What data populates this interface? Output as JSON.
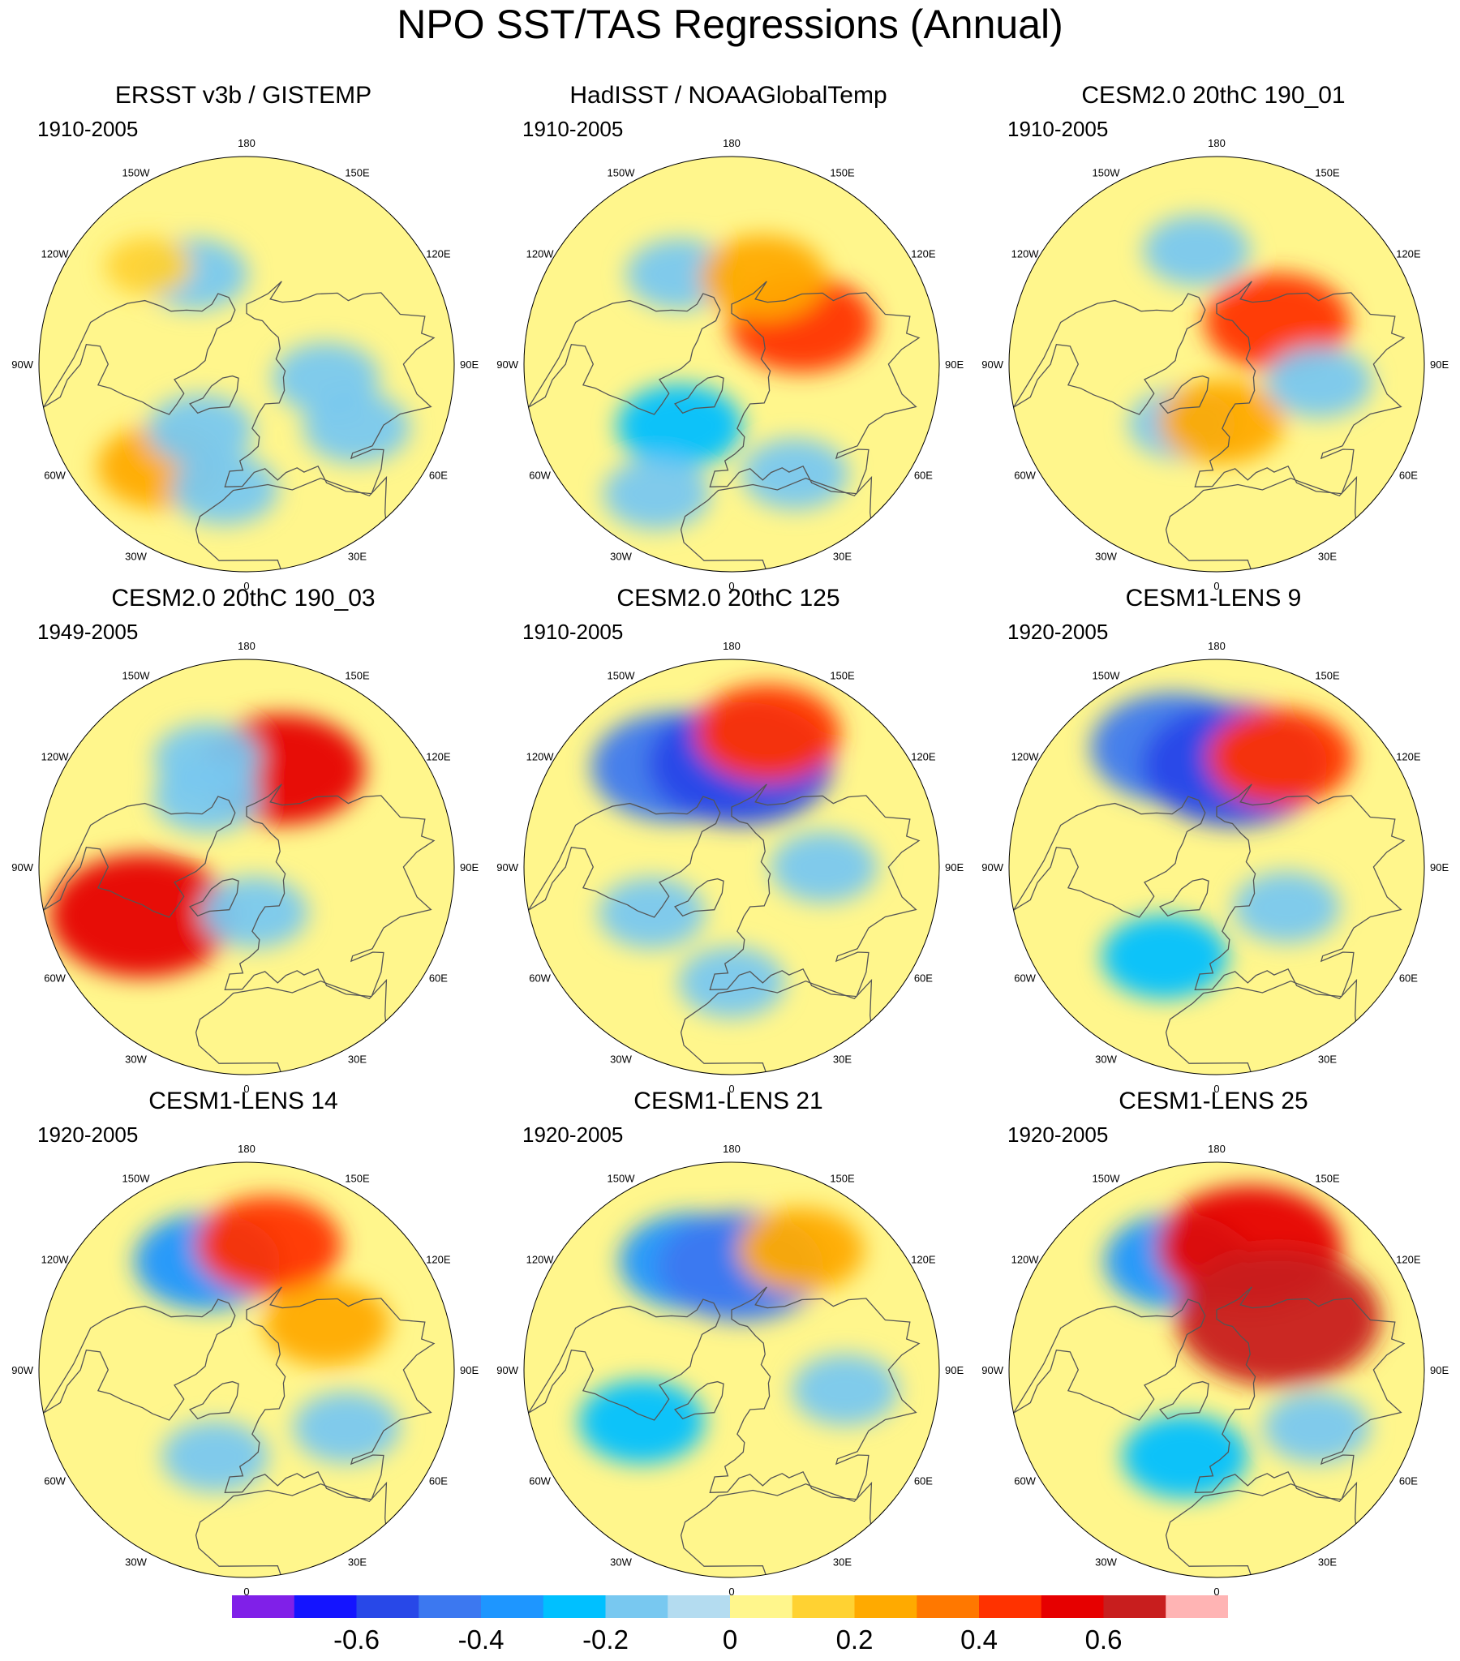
{
  "title": "NPO SST/TAS Regressions (Annual)",
  "longitude_labels": [
    "180",
    "150E",
    "120E",
    "90E",
    "60E",
    "30E",
    "0",
    "30W",
    "60W",
    "90W",
    "120W",
    "150W"
  ],
  "panels": [
    {
      "title": "ERSST v3b / GISTEMP",
      "period": "1910-2005",
      "anomalies": [
        {
          "lon": -150,
          "lat": 45,
          "v": -0.1
        },
        {
          "lon": -135,
          "lat": 30,
          "v": 0.05
        },
        {
          "lon": -40,
          "lat": 32,
          "v": 0.15
        },
        {
          "lon": 60,
          "lat": 35,
          "v": -0.1
        },
        {
          "lon": 80,
          "lat": 55,
          "v": -0.1
        },
        {
          "lon": -35,
          "lat": 55,
          "v": -0.1
        },
        {
          "lon": -10,
          "lat": 35,
          "v": -0.1
        }
      ]
    },
    {
      "title": "HadISST / NOAAGlobalTemp",
      "period": "1910-2005",
      "anomalies": [
        {
          "lon": -150,
          "lat": 45,
          "v": -0.1
        },
        {
          "lon": 120,
          "lat": 55,
          "v": 0.2
        },
        {
          "lon": 160,
          "lat": 50,
          "v": 0.15
        },
        {
          "lon": -40,
          "lat": 55,
          "v": -0.15
        },
        {
          "lon": 30,
          "lat": 35,
          "v": -0.1
        },
        {
          "lon": -30,
          "lat": 25,
          "v": -0.1
        }
      ]
    },
    {
      "title": "CESM2.0 20thC 190_01",
      "period": "1910-2005",
      "anomalies": [
        {
          "lon": -170,
          "lat": 40,
          "v": -0.1
        },
        {
          "lon": 125,
          "lat": 58,
          "v": 0.2
        },
        {
          "lon": -30,
          "lat": 60,
          "v": -0.1
        },
        {
          "lon": 5,
          "lat": 65,
          "v": 0.15
        },
        {
          "lon": 80,
          "lat": 45,
          "v": -0.1
        }
      ]
    },
    {
      "title": "CESM2.0 20thC 190_03",
      "period": "1949-2005",
      "anomalies": [
        {
          "lon": 160,
          "lat": 45,
          "v": 0.25
        },
        {
          "lon": -150,
          "lat": 55,
          "v": -0.1
        },
        {
          "lon": -65,
          "lat": 40,
          "v": 0.3
        },
        {
          "lon": 10,
          "lat": 70,
          "v": -0.1
        },
        {
          "lon": -160,
          "lat": 40,
          "v": -0.1
        }
      ]
    },
    {
      "title": "CESM2.0 20thC 125",
      "period": "1910-2005",
      "anomalies": [
        {
          "lon": -150,
          "lat": 40,
          "v": -0.25
        },
        {
          "lon": 175,
          "lat": 45,
          "v": -0.3
        },
        {
          "lon": 165,
          "lat": 30,
          "v": 0.2
        },
        {
          "lon": -60,
          "lat": 50,
          "v": -0.1
        },
        {
          "lon": 90,
          "lat": 50,
          "v": -0.1
        },
        {
          "lon": 0,
          "lat": 40,
          "v": -0.1
        }
      ]
    },
    {
      "title": "CESM1-LENS 9",
      "period": "1920-2005",
      "anomalies": [
        {
          "lon": -160,
          "lat": 35,
          "v": -0.25
        },
        {
          "lon": 170,
          "lat": 45,
          "v": -0.3
        },
        {
          "lon": 150,
          "lat": 35,
          "v": 0.2
        },
        {
          "lon": -30,
          "lat": 45,
          "v": -0.15
        },
        {
          "lon": 60,
          "lat": 55,
          "v": -0.1
        }
      ]
    },
    {
      "title": "CESM1-LENS 14",
      "period": "1920-2005",
      "anomalies": [
        {
          "lon": -160,
          "lat": 40,
          "v": -0.2
        },
        {
          "lon": 170,
          "lat": 35,
          "v": 0.2
        },
        {
          "lon": 120,
          "lat": 50,
          "v": 0.15
        },
        {
          "lon": -20,
          "lat": 50,
          "v": -0.1
        },
        {
          "lon": 60,
          "lat": 40,
          "v": -0.1
        }
      ]
    },
    {
      "title": "CESM1-LENS 21",
      "period": "1920-2005",
      "anomalies": [
        {
          "lon": -160,
          "lat": 40,
          "v": -0.2
        },
        {
          "lon": 175,
          "lat": 45,
          "v": -0.25
        },
        {
          "lon": 150,
          "lat": 30,
          "v": 0.15
        },
        {
          "lon": -60,
          "lat": 45,
          "v": -0.15
        },
        {
          "lon": 80,
          "lat": 40,
          "v": -0.1
        }
      ]
    },
    {
      "title": "CESM1-LENS 25",
      "period": "1920-2005",
      "anomalies": [
        {
          "lon": -160,
          "lat": 40,
          "v": -0.2
        },
        {
          "lon": 165,
          "lat": 35,
          "v": 0.3
        },
        {
          "lon": 130,
          "lat": 55,
          "v": 0.35
        },
        {
          "lon": -20,
          "lat": 50,
          "v": -0.15
        },
        {
          "lon": 60,
          "lat": 40,
          "v": -0.1
        }
      ]
    }
  ],
  "colorbar": {
    "colors": [
      "#8020e8",
      "#1414ff",
      "#2848e8",
      "#3c78f0",
      "#1e96ff",
      "#00c0ff",
      "#78c8f0",
      "#b4dcf0",
      "#fff68c",
      "#ffd232",
      "#ffaa00",
      "#ff7800",
      "#ff3200",
      "#e60000",
      "#c81e1e",
      "#ffb4b4"
    ],
    "labels": [
      "-0.6",
      "-0.4",
      "-0.2",
      "0",
      "0.2",
      "0.4",
      "0.6"
    ],
    "label_boundaries": [
      2,
      4,
      6,
      8,
      10,
      12,
      14
    ]
  },
  "colors": {
    "land_mask": "#ffffff",
    "coast": "#555555",
    "outline": "#000000"
  }
}
